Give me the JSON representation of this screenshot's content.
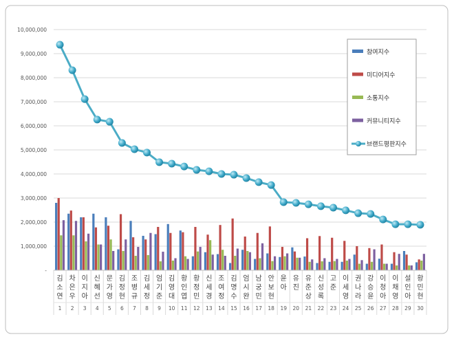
{
  "chart_data": {
    "type": "bar",
    "title": "",
    "xlabel": "",
    "ylabel": "",
    "ylim": [
      0,
      10000000
    ],
    "yticks": [
      0,
      1000000,
      2000000,
      3000000,
      4000000,
      5000000,
      6000000,
      7000000,
      8000000,
      9000000,
      10000000
    ],
    "ytick_labels": [
      "-",
      "1,000,000",
      "2,000,000",
      "3,000,000",
      "4,000,000",
      "5,000,000",
      "6,000,000",
      "7,000,000",
      "8,000,000",
      "9,000,000",
      "10,000,000"
    ],
    "grid": true,
    "legend_position": "top-right",
    "categories": [
      "김소연",
      "차은우",
      "이지아",
      "신혜선",
      "문가영",
      "김정현",
      "조병규",
      "김세정",
      "엄기준",
      "김영대",
      "황인엽",
      "황정민",
      "신세경",
      "조여정",
      "김명수",
      "엄시완",
      "남궁민",
      "안보현",
      "윤아",
      "유진",
      "유준상",
      "신성록",
      "고준",
      "이세영",
      "권나라",
      "강승윤",
      "이청아",
      "이채영",
      "설인아",
      "황민현"
    ],
    "ranks": [
      "1",
      "2",
      "3",
      "4",
      "5",
      "6",
      "7",
      "8",
      "9",
      "10",
      "11",
      "12",
      "13",
      "14",
      "15",
      "16",
      "17",
      "18",
      "19",
      "20",
      "21",
      "22",
      "23",
      "24",
      "25",
      "26",
      "27",
      "28",
      "29",
      "30"
    ],
    "series": [
      {
        "name": "참여지수",
        "type": "bar",
        "color": "#4a7ebb",
        "values": [
          2800000,
          2350000,
          2200000,
          2350000,
          2200000,
          870000,
          2050000,
          1430000,
          1500000,
          1920000,
          1650000,
          580000,
          750000,
          670000,
          300000,
          850000,
          470000,
          700000,
          550000,
          950000,
          570000,
          300000,
          350000,
          350000,
          650000,
          270000,
          480000,
          270000,
          800000,
          330000
        ]
      },
      {
        "name": "미디어지수",
        "type": "bar",
        "color": "#be4b48",
        "values": [
          3000000,
          2480000,
          2200000,
          1780000,
          1850000,
          2330000,
          1370000,
          1280000,
          1800000,
          1550000,
          1580000,
          1800000,
          1480000,
          1880000,
          2150000,
          1400000,
          1550000,
          1820000,
          970000,
          780000,
          1330000,
          1420000,
          1350000,
          1220000,
          1000000,
          920000,
          1070000,
          750000,
          650000,
          450000
        ]
      },
      {
        "name": "소통지수",
        "type": "bar",
        "color": "#98b954",
        "values": [
          1450000,
          1450000,
          1200000,
          1070000,
          1280000,
          800000,
          600000,
          630000,
          370000,
          400000,
          580000,
          780000,
          1250000,
          850000,
          600000,
          800000,
          500000,
          380000,
          580000,
          520000,
          350000,
          370000,
          380000,
          400000,
          270000,
          350000,
          270000,
          200000,
          200000,
          400000
        ]
      },
      {
        "name": "커뮤니티지수",
        "type": "bar",
        "color": "#7d60a0",
        "values": [
          2080000,
          2050000,
          1520000,
          1070000,
          800000,
          1280000,
          970000,
          1550000,
          770000,
          500000,
          470000,
          970000,
          650000,
          600000,
          900000,
          750000,
          1120000,
          580000,
          700000,
          520000,
          450000,
          500000,
          470000,
          470000,
          420000,
          870000,
          270000,
          680000,
          200000,
          680000
        ]
      },
      {
        "name": "브랜드평판지수",
        "type": "line",
        "color": "#4bacc6",
        "values": [
          9370000,
          8310000,
          7110000,
          6260000,
          6170000,
          5290000,
          5030000,
          4890000,
          4490000,
          4430000,
          4310000,
          4170000,
          4110000,
          4000000,
          3970000,
          3830000,
          3660000,
          3540000,
          2830000,
          2800000,
          2740000,
          2660000,
          2600000,
          2490000,
          2370000,
          2340000,
          2110000,
          1910000,
          1910000,
          1890000
        ]
      }
    ]
  }
}
